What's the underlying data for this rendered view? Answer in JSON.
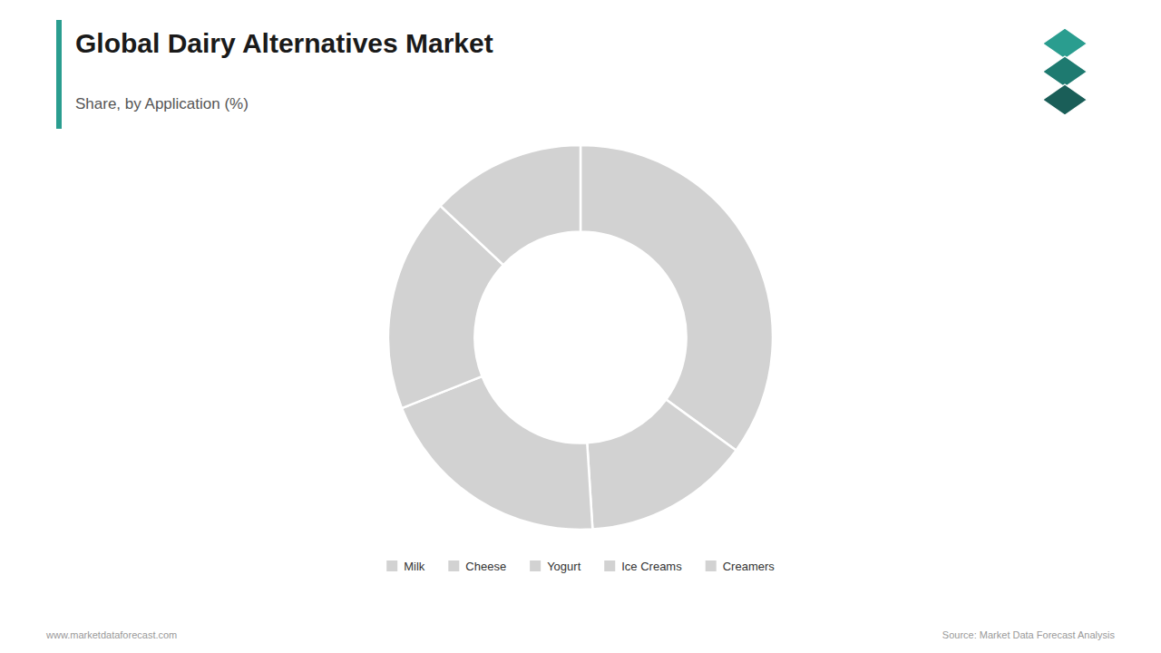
{
  "chart_data": {
    "type": "donut",
    "title": "Global Dairy Alternatives Market",
    "subtitle": "Share, by Application (%)",
    "categories": [
      "Milk",
      "Cheese",
      "Yogurt",
      "Ice Creams",
      "Creamers"
    ],
    "values": [
      35,
      14,
      20,
      18,
      13
    ],
    "color": "#d2d2d2",
    "legend": "bottom",
    "annotations": [
      "www.marketdataforecast.com",
      "Source: Market Data Forecast Analysis"
    ]
  }
}
